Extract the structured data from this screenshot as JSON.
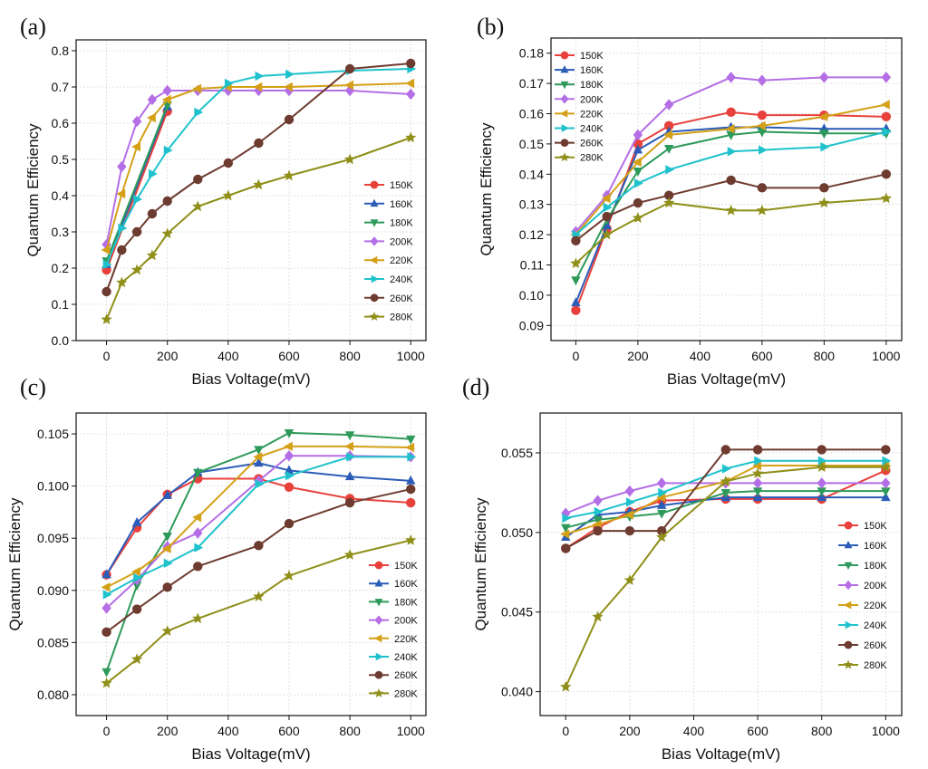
{
  "chart_data": [
    {
      "panel": "(a)",
      "type": "line",
      "xlabel": "Bias Voltage(mV)",
      "ylabel": "Quantum Efficiency",
      "xlim": [
        -100,
        1050
      ],
      "ylim": [
        0,
        0.83
      ],
      "xticks": [
        "0",
        "200",
        "400",
        "600",
        "800",
        "1000"
      ],
      "yticks": [
        "0.0",
        "0.1",
        "0.2",
        "0.3",
        "0.4",
        "0.5",
        "0.6",
        "0.7",
        "0.8"
      ],
      "grid": true,
      "legend_position": "bottom-right",
      "series": [
        {
          "name": "150K",
          "color": "#e8413c",
          "marker": "circle",
          "x": [
            0,
            200
          ],
          "y": [
            0.195,
            0.633
          ]
        },
        {
          "name": "160K",
          "color": "#2a5cb8",
          "marker": "triangle-up",
          "x": [
            0,
            200
          ],
          "y": [
            0.21,
            0.645
          ]
        },
        {
          "name": "180K",
          "color": "#2e9a5a",
          "marker": "triangle-down",
          "x": [
            0,
            200
          ],
          "y": [
            0.22,
            0.65
          ]
        },
        {
          "name": "200K",
          "color": "#b46ee6",
          "marker": "diamond",
          "x": [
            0,
            50,
            100,
            150,
            200,
            300,
            400,
            500,
            600,
            800,
            1000
          ],
          "y": [
            0.265,
            0.48,
            0.605,
            0.665,
            0.69,
            0.69,
            0.69,
            0.69,
            0.69,
            0.69,
            0.68
          ]
        },
        {
          "name": "220K",
          "color": "#d4a017",
          "marker": "triangle-left",
          "x": [
            0,
            50,
            100,
            150,
            200,
            300,
            400,
            500,
            600,
            800,
            1000
          ],
          "y": [
            0.25,
            0.405,
            0.535,
            0.615,
            0.665,
            0.695,
            0.7,
            0.7,
            0.7,
            0.705,
            0.71
          ]
        },
        {
          "name": "240K",
          "color": "#1fc2cc",
          "marker": "triangle-right",
          "x": [
            0,
            50,
            100,
            150,
            200,
            300,
            400,
            500,
            600,
            800,
            1000
          ],
          "y": [
            0.21,
            0.31,
            0.39,
            0.46,
            0.525,
            0.63,
            0.71,
            0.73,
            0.735,
            0.745,
            0.75
          ]
        },
        {
          "name": "260K",
          "color": "#6e3b30",
          "marker": "circle",
          "x": [
            0,
            50,
            100,
            150,
            200,
            300,
            400,
            500,
            600,
            800,
            1000
          ],
          "y": [
            0.135,
            0.25,
            0.3,
            0.35,
            0.385,
            0.445,
            0.49,
            0.545,
            0.61,
            0.75,
            0.765
          ]
        },
        {
          "name": "280K",
          "color": "#8f8f1a",
          "marker": "star",
          "x": [
            0,
            50,
            100,
            150,
            200,
            300,
            400,
            500,
            600,
            800,
            1000
          ],
          "y": [
            0.058,
            0.16,
            0.195,
            0.235,
            0.295,
            0.37,
            0.4,
            0.43,
            0.455,
            0.5,
            0.56
          ]
        }
      ]
    },
    {
      "panel": "(b)",
      "type": "line",
      "xlabel": "Bias Voltage(mV)",
      "ylabel": "Quantum Efficiency",
      "xlim": [
        -80,
        1050
      ],
      "ylim": [
        0.085,
        0.185
      ],
      "xticks": [
        "0",
        "200",
        "400",
        "600",
        "800",
        "1000"
      ],
      "yticks": [
        "0.09",
        "0.10",
        "0.11",
        "0.12",
        "0.13",
        "0.14",
        "0.15",
        "0.16",
        "0.17",
        "0.18"
      ],
      "grid": true,
      "legend_position": "top-left",
      "series": [
        {
          "name": "150K",
          "color": "#e8413c",
          "marker": "circle",
          "x": [
            0,
            100,
            200,
            300,
            500,
            600,
            800,
            1000
          ],
          "y": [
            0.095,
            0.122,
            0.15,
            0.156,
            0.1605,
            0.1595,
            0.1595,
            0.159
          ]
        },
        {
          "name": "160K",
          "color": "#2a5cb8",
          "marker": "triangle-up",
          "x": [
            0,
            100,
            200,
            300,
            500,
            600,
            800,
            1000
          ],
          "y": [
            0.0975,
            0.123,
            0.148,
            0.154,
            0.1555,
            0.1555,
            0.155,
            0.155
          ]
        },
        {
          "name": "180K",
          "color": "#2e9a5a",
          "marker": "triangle-down",
          "x": [
            0,
            100,
            200,
            300,
            500,
            600,
            800,
            1000
          ],
          "y": [
            0.105,
            0.125,
            0.141,
            0.1485,
            0.153,
            0.154,
            0.1535,
            0.1535
          ]
        },
        {
          "name": "200K",
          "color": "#b46ee6",
          "marker": "diamond",
          "x": [
            0,
            100,
            200,
            300,
            500,
            600,
            800,
            1000
          ],
          "y": [
            0.121,
            0.133,
            0.153,
            0.163,
            0.172,
            0.171,
            0.172,
            0.172
          ]
        },
        {
          "name": "220K",
          "color": "#d4a017",
          "marker": "triangle-left",
          "x": [
            0,
            100,
            200,
            300,
            500,
            600,
            800,
            1000
          ],
          "y": [
            0.12,
            0.132,
            0.144,
            0.153,
            0.155,
            0.156,
            0.159,
            0.163
          ]
        },
        {
          "name": "240K",
          "color": "#1fc2cc",
          "marker": "triangle-right",
          "x": [
            0,
            100,
            200,
            300,
            500,
            600,
            800,
            1000
          ],
          "y": [
            0.12,
            0.129,
            0.137,
            0.1415,
            0.1475,
            0.148,
            0.149,
            0.154
          ]
        },
        {
          "name": "260K",
          "color": "#6e3b30",
          "marker": "circle",
          "x": [
            0,
            100,
            200,
            300,
            500,
            600,
            800,
            1000
          ],
          "y": [
            0.118,
            0.126,
            0.1305,
            0.133,
            0.138,
            0.1355,
            0.1355,
            0.14
          ]
        },
        {
          "name": "280K",
          "color": "#8f8f1a",
          "marker": "star",
          "x": [
            0,
            100,
            200,
            300,
            500,
            600,
            800,
            1000
          ],
          "y": [
            0.1105,
            0.12,
            0.1255,
            0.1305,
            0.128,
            0.128,
            0.1305,
            0.132
          ]
        }
      ]
    },
    {
      "panel": "(c)",
      "type": "line",
      "xlabel": "Bias Voltage(mV)",
      "ylabel": "Quantum Efficiency",
      "xlim": [
        -100,
        1050
      ],
      "ylim": [
        0.078,
        0.107
      ],
      "xticks": [
        "0",
        "200",
        "400",
        "600",
        "800",
        "1000"
      ],
      "yticks": [
        "0.080",
        "0.085",
        "0.090",
        "0.095",
        "0.100",
        "0.105"
      ],
      "grid": true,
      "legend_position": "bottom-right",
      "series": [
        {
          "name": "150K",
          "color": "#e8413c",
          "marker": "circle",
          "x": [
            0,
            100,
            200,
            300,
            500,
            600,
            800,
            1000
          ],
          "y": [
            0.0915,
            0.096,
            0.0992,
            0.1007,
            0.1007,
            0.0999,
            0.0988,
            0.0984
          ]
        },
        {
          "name": "160K",
          "color": "#2a5cb8",
          "marker": "triangle-up",
          "x": [
            0,
            100,
            200,
            300,
            500,
            600,
            800,
            1000
          ],
          "y": [
            0.0915,
            0.0965,
            0.0991,
            0.1013,
            0.1022,
            0.1015,
            0.1009,
            0.1005
          ]
        },
        {
          "name": "180K",
          "color": "#2e9a5a",
          "marker": "triangle-down",
          "x": [
            0,
            100,
            200,
            300,
            500,
            600,
            800,
            1000
          ],
          "y": [
            0.0822,
            0.0905,
            0.0952,
            0.1013,
            0.1035,
            0.1051,
            0.1049,
            0.1045
          ]
        },
        {
          "name": "200K",
          "color": "#b46ee6",
          "marker": "diamond",
          "x": [
            0,
            100,
            200,
            300,
            500,
            600,
            800,
            1000
          ],
          "y": [
            0.0883,
            0.091,
            0.0942,
            0.0955,
            0.1005,
            0.1029,
            0.1029,
            0.1028
          ]
        },
        {
          "name": "220K",
          "color": "#d4a017",
          "marker": "triangle-left",
          "x": [
            0,
            100,
            200,
            300,
            500,
            600,
            800,
            1000
          ],
          "y": [
            0.0903,
            0.0918,
            0.094,
            0.097,
            0.1028,
            0.1038,
            0.1038,
            0.1037
          ]
        },
        {
          "name": "240K",
          "color": "#1fc2cc",
          "marker": "triangle-right",
          "x": [
            0,
            100,
            200,
            300,
            500,
            600,
            800,
            1000
          ],
          "y": [
            0.0896,
            0.0912,
            0.0926,
            0.0941,
            0.1002,
            0.101,
            0.1028,
            0.1028
          ]
        },
        {
          "name": "260K",
          "color": "#6e3b30",
          "marker": "circle",
          "x": [
            0,
            100,
            200,
            300,
            500,
            600,
            800,
            1000
          ],
          "y": [
            0.086,
            0.0882,
            0.0903,
            0.0923,
            0.0943,
            0.0964,
            0.0984,
            0.0997
          ]
        },
        {
          "name": "280K",
          "color": "#8f8f1a",
          "marker": "star",
          "x": [
            0,
            100,
            200,
            300,
            500,
            600,
            800,
            1000
          ],
          "y": [
            0.0811,
            0.0834,
            0.0861,
            0.0873,
            0.0894,
            0.0914,
            0.0934,
            0.0948
          ]
        }
      ]
    },
    {
      "panel": "(d)",
      "type": "line",
      "xlabel": "Bias Voltage(mV)",
      "ylabel": "Quantum Efficiency",
      "xlim": [
        -80,
        1050
      ],
      "ylim": [
        0.0385,
        0.0575
      ],
      "xticks": [
        "0",
        "200",
        "400",
        "600",
        "800",
        "1000"
      ],
      "yticks": [
        "0.040",
        "0.045",
        "0.050",
        "0.055"
      ],
      "grid": true,
      "legend_position": "bottom-right",
      "series": [
        {
          "name": "150K",
          "color": "#e8413c",
          "marker": "circle",
          "x": [
            0,
            100,
            200,
            300,
            500,
            600,
            800,
            1000
          ],
          "y": [
            0.049,
            0.0503,
            0.0513,
            0.052,
            0.0521,
            0.0521,
            0.0521,
            0.0539
          ]
        },
        {
          "name": "160K",
          "color": "#2a5cb8",
          "marker": "triangle-up",
          "x": [
            0,
            100,
            200,
            300,
            500,
            600,
            800,
            1000
          ],
          "y": [
            0.0497,
            0.0511,
            0.0513,
            0.0517,
            0.0522,
            0.0522,
            0.0522,
            0.0522
          ]
        },
        {
          "name": "180K",
          "color": "#2e9a5a",
          "marker": "triangle-down",
          "x": [
            0,
            100,
            200,
            300,
            500,
            600,
            800,
            1000
          ],
          "y": [
            0.0503,
            0.0508,
            0.051,
            0.0512,
            0.0525,
            0.0526,
            0.0526,
            0.0526
          ]
        },
        {
          "name": "200K",
          "color": "#b46ee6",
          "marker": "diamond",
          "x": [
            0,
            100,
            200,
            300,
            500,
            600,
            800,
            1000
          ],
          "y": [
            0.0512,
            0.052,
            0.0526,
            0.0531,
            0.0531,
            0.0531,
            0.0531,
            0.0531
          ]
        },
        {
          "name": "220K",
          "color": "#d4a017",
          "marker": "triangle-left",
          "x": [
            0,
            100,
            200,
            300,
            500,
            600,
            800,
            1000
          ],
          "y": [
            0.0499,
            0.0505,
            0.0511,
            0.0522,
            0.0532,
            0.0542,
            0.0542,
            0.0542
          ]
        },
        {
          "name": "240K",
          "color": "#1fc2cc",
          "marker": "triangle-right",
          "x": [
            0,
            100,
            200,
            300,
            500,
            600,
            800,
            1000
          ],
          "y": [
            0.0509,
            0.0513,
            0.0519,
            0.0525,
            0.054,
            0.0545,
            0.0545,
            0.0545
          ]
        },
        {
          "name": "260K",
          "color": "#6e3b30",
          "marker": "circle",
          "x": [
            0,
            100,
            200,
            300,
            500,
            600,
            800,
            1000
          ],
          "y": [
            0.049,
            0.0501,
            0.0501,
            0.0501,
            0.0552,
            0.0552,
            0.0552,
            0.0552
          ]
        },
        {
          "name": "280K",
          "color": "#8f8f1a",
          "marker": "star",
          "x": [
            0,
            100,
            200,
            300,
            500,
            600,
            800,
            1000
          ],
          "y": [
            0.0403,
            0.0447,
            0.047,
            0.0497,
            0.0532,
            0.0537,
            0.0541,
            0.0541
          ]
        }
      ]
    }
  ]
}
